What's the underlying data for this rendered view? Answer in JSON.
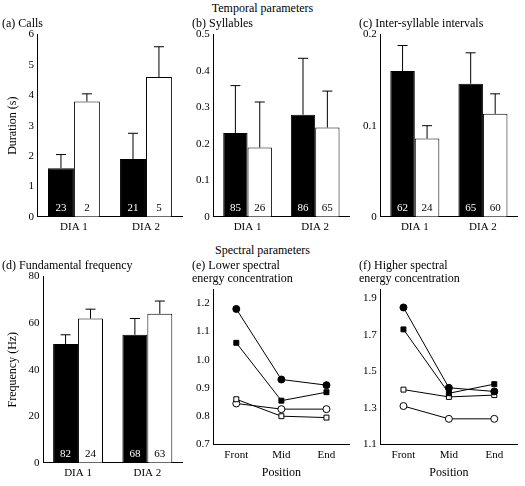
{
  "headers": [
    "Temporal parameters",
    "Spectral parameters"
  ],
  "chart_data": [
    {
      "type": "bar",
      "title": "(a) Calls",
      "ylabel": "Duration (s)",
      "categories": [
        "DIA 1",
        "DIA 2"
      ],
      "series": [
        {
          "color": "#000000",
          "values": [
            1.6,
            1.9
          ],
          "errors": [
            0.45,
            0.85
          ],
          "sample_sizes": [
            23,
            21
          ]
        },
        {
          "color": "#ffffff",
          "values": [
            3.8,
            4.6
          ],
          "errors": [
            0.25,
            1.0
          ],
          "sample_sizes": [
            2,
            5
          ]
        }
      ],
      "ylim": [
        0,
        6
      ],
      "yticks": [
        0,
        1,
        2,
        3,
        4,
        5,
        6
      ],
      "grid": false
    },
    {
      "type": "bar",
      "title": "(b) Syllables",
      "categories": [
        "DIA 1",
        "DIA 2"
      ],
      "series": [
        {
          "color": "#000000",
          "values": [
            0.23,
            0.28
          ],
          "errors": [
            0.13,
            0.155
          ],
          "sample_sizes": [
            85,
            86
          ]
        },
        {
          "color": "#ffffff",
          "values": [
            0.19,
            0.245
          ],
          "errors": [
            0.125,
            0.1
          ],
          "sample_sizes": [
            26,
            65
          ]
        }
      ],
      "ylim": [
        0,
        0.5
      ],
      "yticks": [
        0,
        0.1,
        0.2,
        0.3,
        0.4,
        0.5
      ],
      "grid": false
    },
    {
      "type": "bar",
      "title": "(c) Inter-syllable intervals",
      "categories": [
        "DIA 1",
        "DIA 2"
      ],
      "series": [
        {
          "color": "#000000",
          "values": [
            0.16,
            0.146
          ],
          "errors": [
            0.028,
            0.034
          ],
          "sample_sizes": [
            62,
            65
          ]
        },
        {
          "color": "#ffffff",
          "values": [
            0.086,
            0.113
          ],
          "errors": [
            0.014,
            0.022
          ],
          "sample_sizes": [
            24,
            60
          ]
        }
      ],
      "ylim": [
        0,
        0.2
      ],
      "yticks": [
        0,
        0.1,
        0.2
      ],
      "grid": false
    },
    {
      "type": "bar",
      "title": "(d) Fundamental frequency",
      "ylabel": "Frequency (Hz)",
      "categories": [
        "DIA 1",
        "DIA 2"
      ],
      "series": [
        {
          "color": "#000000",
          "values": [
            51,
            55
          ],
          "errors": [
            4,
            7
          ],
          "sample_sizes": [
            82,
            68
          ]
        },
        {
          "color": "#ffffff",
          "values": [
            62,
            64
          ],
          "errors": [
            4,
            5.5
          ],
          "sample_sizes": [
            24,
            63
          ]
        }
      ],
      "ylim": [
        0,
        80
      ],
      "yticks": [
        0,
        20,
        40,
        60,
        80
      ],
      "grid": false
    },
    {
      "type": "line",
      "title": [
        "(e) Lower spectral",
        "energy concentration"
      ],
      "xlabel": "Position",
      "categories": [
        "Front",
        "Mid",
        "End"
      ],
      "series": [
        {
          "color": "#000000",
          "marker": "filled_circle",
          "values": [
            1.18,
            0.93,
            0.91
          ]
        },
        {
          "color": "#000000",
          "marker": "filled_square",
          "values": [
            1.06,
            0.855,
            0.885
          ]
        },
        {
          "color": "#000000",
          "marker": "open_square",
          "values": [
            0.86,
            0.8,
            0.795
          ]
        },
        {
          "color": "#000000",
          "marker": "open_circle",
          "values": [
            0.845,
            0.825,
            0.825
          ]
        }
      ],
      "ylim": [
        0.7,
        1.25
      ],
      "yticks": [
        0.7,
        0.8,
        0.9,
        {
          "value": 1,
          "label": "1.0"
        },
        1.1,
        1.2
      ],
      "grid": false
    },
    {
      "type": "line",
      "title": [
        "(f) Higher spectral",
        "energy concentration"
      ],
      "xlabel": "Position",
      "categories": [
        "Front",
        "Mid",
        "End"
      ],
      "series": [
        {
          "color": "#000000",
          "marker": "filled_circle",
          "values": [
            1.85,
            1.41,
            1.39
          ]
        },
        {
          "color": "#000000",
          "marker": "filled_square",
          "values": [
            1.73,
            1.38,
            1.43
          ]
        },
        {
          "color": "#000000",
          "marker": "open_square",
          "values": [
            1.4,
            1.36,
            1.37
          ]
        },
        {
          "color": "#000000",
          "marker": "open_circle",
          "values": [
            1.31,
            1.24,
            1.24
          ]
        }
      ],
      "ylim": [
        1.1,
        1.95
      ],
      "yticks": [
        1.1,
        1.3,
        1.5,
        1.7,
        1.9
      ],
      "grid": false
    }
  ]
}
